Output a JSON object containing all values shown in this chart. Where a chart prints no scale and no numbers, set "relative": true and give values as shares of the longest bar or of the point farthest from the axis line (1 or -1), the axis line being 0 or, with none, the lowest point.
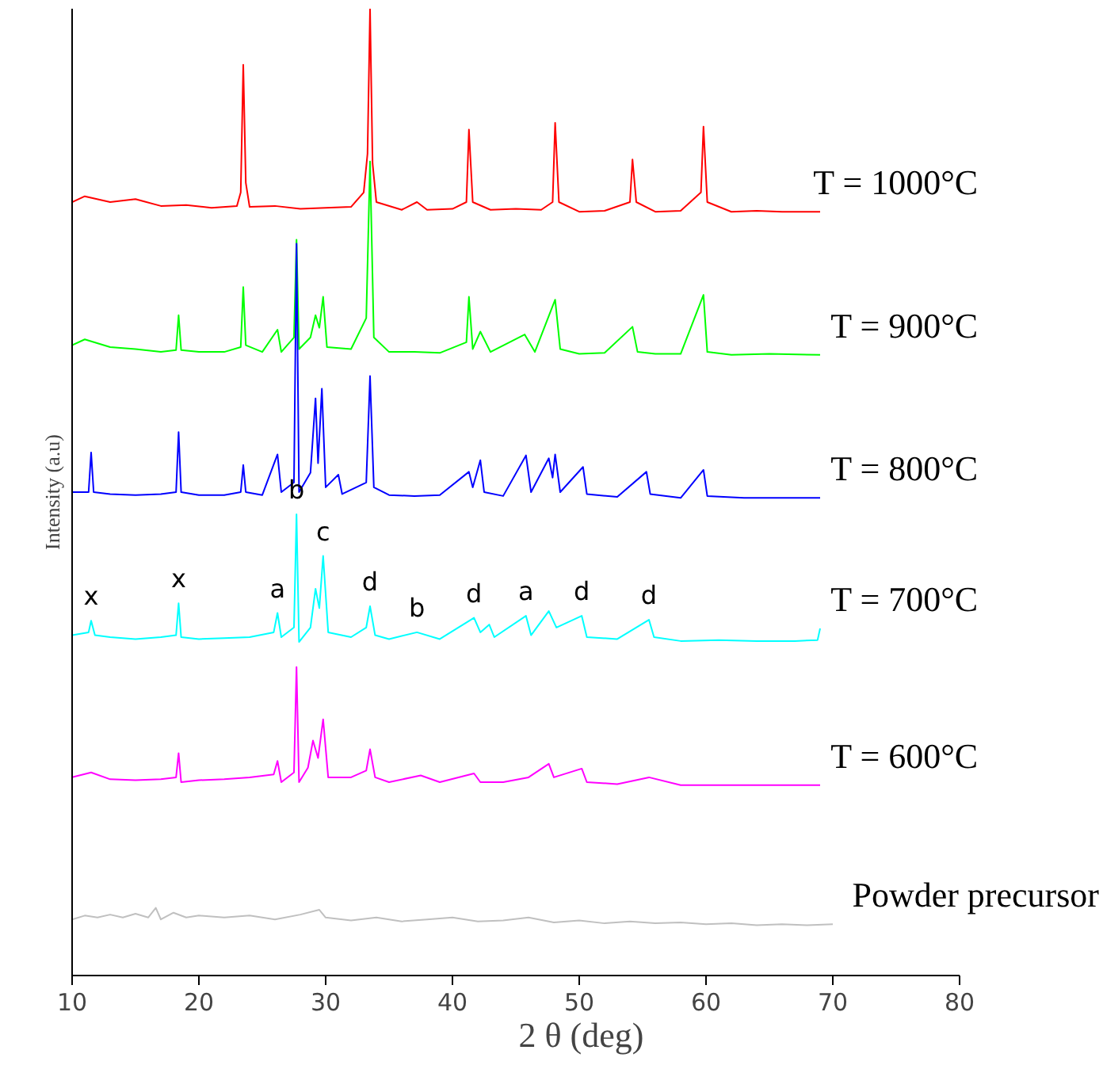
{
  "chart_data": {
    "type": "line",
    "relative": true,
    "xlabel": "2 θ  (deg)",
    "ylabel": "Intensity (a.u)",
    "xlim": [
      10,
      80
    ],
    "xticks": [
      10,
      20,
      30,
      40,
      50,
      60,
      70,
      80
    ],
    "grid": false,
    "marker": "none",
    "line_style": "solid",
    "series": [
      {
        "name": "T = 1000°C",
        "color": "#ff0000",
        "x": [
          10,
          11,
          13,
          15,
          17,
          19,
          21,
          23,
          23.3,
          23.5,
          23.7,
          24,
          26,
          28,
          30,
          32,
          33,
          33.3,
          33.5,
          33.7,
          34,
          36,
          37.2,
          38,
          40,
          41.1,
          41.3,
          41.6,
          43,
          45,
          47,
          47.9,
          48.1,
          48.4,
          50,
          52,
          54,
          54.2,
          54.5,
          56,
          58,
          59.6,
          59.8,
          60.1,
          62,
          64,
          66,
          69
        ],
        "values": [
          0.8,
          0.806,
          0.8,
          0.803,
          0.796,
          0.797,
          0.794,
          0.796,
          0.81,
          0.942,
          0.82,
          0.795,
          0.796,
          0.793,
          0.794,
          0.795,
          0.81,
          0.85,
          1.0,
          0.84,
          0.8,
          0.792,
          0.8,
          0.792,
          0.793,
          0.8,
          0.875,
          0.8,
          0.792,
          0.793,
          0.792,
          0.8,
          0.882,
          0.8,
          0.79,
          0.791,
          0.8,
          0.844,
          0.8,
          0.79,
          0.791,
          0.81,
          0.878,
          0.8,
          0.79,
          0.791,
          0.79,
          0.79
        ]
      },
      {
        "name": "T = 900°C",
        "color": "#00ff00",
        "x": [
          10,
          11,
          13,
          15,
          17,
          18.2,
          18.4,
          18.6,
          20,
          22,
          23.3,
          23.5,
          23.7,
          25,
          26.2,
          26.5,
          27.5,
          27.7,
          27.9,
          28.8,
          29.2,
          29.5,
          29.8,
          30.1,
          32,
          33.2,
          33.5,
          33.8,
          35,
          37,
          39,
          41.1,
          41.3,
          41.6,
          42.2,
          43,
          45.7,
          46.5,
          48.1,
          48.5,
          50,
          52,
          54.2,
          54.6,
          56,
          58,
          59.8,
          60.1,
          62,
          65,
          69
        ],
        "values": [
          0.652,
          0.658,
          0.65,
          0.648,
          0.645,
          0.647,
          0.683,
          0.647,
          0.645,
          0.645,
          0.65,
          0.712,
          0.652,
          0.645,
          0.668,
          0.645,
          0.66,
          0.761,
          0.648,
          0.66,
          0.683,
          0.67,
          0.702,
          0.65,
          0.648,
          0.68,
          0.842,
          0.66,
          0.645,
          0.645,
          0.644,
          0.655,
          0.702,
          0.648,
          0.666,
          0.645,
          0.663,
          0.645,
          0.699,
          0.648,
          0.643,
          0.644,
          0.671,
          0.645,
          0.643,
          0.643,
          0.704,
          0.645,
          0.642,
          0.643,
          0.642
        ]
      },
      {
        "name": "T = 800°C",
        "color": "#0000ff",
        "x": [
          10,
          11.3,
          11.5,
          11.7,
          13,
          15,
          17,
          18.2,
          18.4,
          18.6,
          20,
          22,
          23.3,
          23.5,
          23.7,
          25,
          26.2,
          26.5,
          27.5,
          27.7,
          27.9,
          28.8,
          29.2,
          29.4,
          29.7,
          30,
          31,
          31.3,
          33.2,
          33.5,
          33.8,
          35,
          37,
          39,
          41.3,
          41.6,
          42.2,
          42.5,
          44,
          45.8,
          46.2,
          47.6,
          47.9,
          48.1,
          48.5,
          50.3,
          50.6,
          53,
          55.3,
          55.6,
          58,
          59.8,
          60.1,
          63,
          66,
          69
        ],
        "values": [
          0.5,
          0.5,
          0.541,
          0.5,
          0.498,
          0.497,
          0.498,
          0.5,
          0.562,
          0.5,
          0.497,
          0.497,
          0.5,
          0.528,
          0.5,
          0.497,
          0.539,
          0.5,
          0.51,
          0.757,
          0.5,
          0.52,
          0.597,
          0.53,
          0.607,
          0.505,
          0.518,
          0.498,
          0.51,
          0.62,
          0.505,
          0.497,
          0.496,
          0.497,
          0.521,
          0.505,
          0.533,
          0.5,
          0.496,
          0.538,
          0.5,
          0.535,
          0.515,
          0.539,
          0.5,
          0.526,
          0.498,
          0.495,
          0.521,
          0.498,
          0.494,
          0.523,
          0.496,
          0.494,
          0.494,
          0.494
        ]
      },
      {
        "name": "T = 700°C",
        "color": "#00ffff",
        "x": [
          10,
          11.3,
          11.5,
          11.8,
          13,
          15,
          17,
          18.2,
          18.4,
          18.6,
          20,
          22,
          24,
          25.9,
          26.2,
          26.5,
          27.5,
          27.7,
          27.9,
          28.8,
          29.2,
          29.5,
          29.8,
          30.2,
          32,
          33.2,
          33.5,
          33.9,
          35,
          37.2,
          39,
          41.7,
          42.2,
          42.9,
          43.3,
          45.8,
          46.2,
          47.6,
          48.2,
          50.2,
          50.6,
          53,
          55.5,
          55.9,
          58,
          61,
          64,
          67,
          68.8,
          69
        ],
        "values": [
          0.352,
          0.355,
          0.367,
          0.352,
          0.35,
          0.348,
          0.35,
          0.352,
          0.385,
          0.35,
          0.348,
          0.349,
          0.35,
          0.355,
          0.375,
          0.35,
          0.36,
          0.477,
          0.345,
          0.36,
          0.4,
          0.38,
          0.434,
          0.355,
          0.35,
          0.36,
          0.382,
          0.352,
          0.348,
          0.355,
          0.348,
          0.37,
          0.355,
          0.363,
          0.35,
          0.372,
          0.352,
          0.377,
          0.36,
          0.372,
          0.35,
          0.348,
          0.368,
          0.35,
          0.346,
          0.347,
          0.346,
          0.346,
          0.347,
          0.359
        ]
      },
      {
        "name": "T = 600°C",
        "color": "#ff00ff",
        "x": [
          10,
          11.5,
          13,
          15,
          17,
          18.2,
          18.4,
          18.6,
          20,
          22,
          24,
          25.9,
          26.2,
          26.5,
          27.5,
          27.7,
          27.9,
          28.6,
          29,
          29.4,
          29.8,
          30.2,
          32,
          33.2,
          33.5,
          33.9,
          35,
          37.5,
          39,
          41.7,
          42.2,
          44,
          46,
          47.6,
          48,
          50.2,
          50.6,
          53,
          55.5,
          58,
          61,
          64,
          67,
          69
        ],
        "values": [
          0.205,
          0.21,
          0.203,
          0.202,
          0.203,
          0.205,
          0.23,
          0.2,
          0.202,
          0.203,
          0.205,
          0.208,
          0.222,
          0.2,
          0.21,
          0.319,
          0.2,
          0.215,
          0.243,
          0.225,
          0.265,
          0.205,
          0.205,
          0.212,
          0.234,
          0.205,
          0.2,
          0.207,
          0.2,
          0.209,
          0.2,
          0.2,
          0.205,
          0.219,
          0.205,
          0.214,
          0.2,
          0.198,
          0.205,
          0.197,
          0.197,
          0.197,
          0.197,
          0.197
        ]
      },
      {
        "name": "Powder precursor",
        "color": "#c0c0c0",
        "x": [
          10,
          11,
          12,
          13,
          14,
          15,
          16,
          16.6,
          17,
          18,
          19,
          20,
          22,
          24,
          26,
          28,
          29.5,
          30,
          32,
          34,
          36,
          38,
          40,
          42,
          44,
          46,
          48,
          50,
          52,
          54,
          56,
          58,
          60,
          62,
          64,
          66,
          68,
          70
        ],
        "values": [
          0.058,
          0.062,
          0.06,
          0.063,
          0.06,
          0.064,
          0.06,
          0.07,
          0.058,
          0.065,
          0.06,
          0.062,
          0.06,
          0.062,
          0.058,
          0.063,
          0.068,
          0.06,
          0.057,
          0.06,
          0.056,
          0.058,
          0.06,
          0.056,
          0.057,
          0.06,
          0.055,
          0.057,
          0.054,
          0.056,
          0.054,
          0.055,
          0.053,
          0.054,
          0.052,
          0.053,
          0.052,
          0.053
        ]
      }
    ],
    "annotations": [
      {
        "text": "x",
        "x": 11.5,
        "y": 0.367
      },
      {
        "text": "x",
        "x": 18.4,
        "y": 0.385
      },
      {
        "text": "a",
        "x": 26.2,
        "y": 0.375
      },
      {
        "text": "b",
        "x": 27.7,
        "y": 0.477
      },
      {
        "text": "c",
        "x": 29.8,
        "y": 0.434
      },
      {
        "text": "d",
        "x": 33.5,
        "y": 0.382
      },
      {
        "text": "b",
        "x": 37.2,
        "y": 0.355
      },
      {
        "text": "d",
        "x": 41.7,
        "y": 0.37
      },
      {
        "text": "a",
        "x": 45.8,
        "y": 0.372
      },
      {
        "text": "d",
        "x": 50.2,
        "y": 0.372
      },
      {
        "text": "d",
        "x": 55.5,
        "y": 0.368
      }
    ]
  }
}
